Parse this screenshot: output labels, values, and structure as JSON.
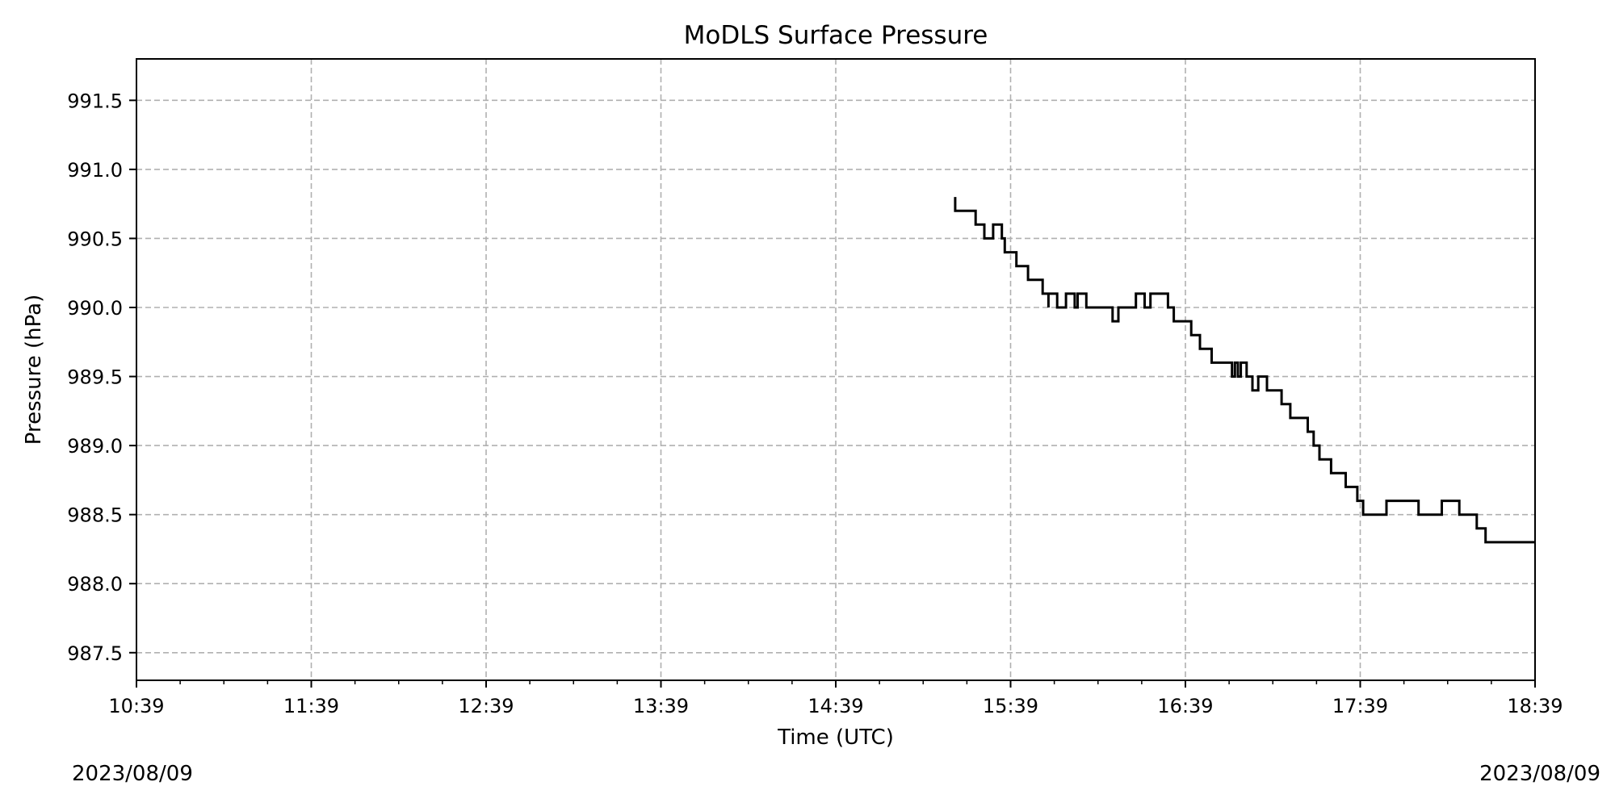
{
  "chart_data": {
    "type": "line",
    "title": "MoDLS Surface Pressure",
    "xlabel": "Time (UTC)",
    "ylabel": "Pressure (hPa)",
    "xlim": [
      "10:39",
      "18:39"
    ],
    "ylim": [
      987.3,
      991.8
    ],
    "x_ticks": [
      "10:39",
      "11:39",
      "12:39",
      "13:39",
      "14:39",
      "15:39",
      "16:39",
      "17:39",
      "18:39"
    ],
    "y_ticks": [
      "987.5",
      "988.0",
      "988.5",
      "989.0",
      "989.5",
      "990.0",
      "990.5",
      "991.0",
      "991.5"
    ],
    "date_left": "2023/08/09",
    "date_right": "2023/08/09",
    "grid": true,
    "line_color": "#000000",
    "series": [
      {
        "style": "step",
        "x": [
          "15:20",
          "15:20",
          "15:27",
          "15:27",
          "15:28",
          "15:30",
          "15:30",
          "15:32",
          "15:33",
          "15:34",
          "15:36",
          "15:37",
          "15:41",
          "15:43",
          "15:45",
          "15:45",
          "15:50",
          "15:51",
          "15:52",
          "15:52",
          "15:55",
          "15:56",
          "15:57",
          "15:58",
          "16:01",
          "16:02",
          "16:05",
          "16:06",
          "16:08",
          "16:10",
          "16:12",
          "16:14",
          "16:16",
          "16:17",
          "16:19",
          "16:22",
          "16:25",
          "16:27",
          "16:28",
          "16:30",
          "16:33",
          "16:35",
          "16:41",
          "16:44",
          "16:48",
          "16:55",
          "16:56",
          "16:57",
          "16:58",
          "17:00",
          "17:02",
          "17:04",
          "17:07",
          "17:12",
          "17:15",
          "17:16",
          "17:18",
          "17:21",
          "17:23",
          "17:25",
          "17:29",
          "17:34",
          "17:38",
          "17:39",
          "17:40",
          "17:44",
          "17:48",
          "17:54",
          "17:59",
          "18:07",
          "18:13",
          "18:15",
          "18:19",
          "18:22",
          "18:26",
          "18:28",
          "18:39"
        ],
        "y": [
          990.8,
          990.7,
          990.7,
          990.6,
          990.6,
          990.6,
          990.5,
          990.5,
          990.6,
          990.6,
          990.5,
          990.4,
          990.3,
          990.3,
          990.2,
          990.2,
          990.1,
          990.1,
          990.0,
          990.1,
          990.0,
          990.0,
          990.0,
          990.1,
          990.0,
          990.1,
          990.0,
          990.0,
          990.0,
          990.0,
          990.0,
          989.9,
          990.0,
          990.0,
          990.0,
          990.1,
          990.0,
          990.1,
          990.1,
          990.1,
          990.0,
          989.9,
          989.8,
          989.7,
          989.6,
          989.5,
          989.6,
          989.5,
          989.6,
          989.5,
          989.4,
          989.5,
          989.4,
          989.3,
          989.2,
          989.2,
          989.2,
          989.1,
          989.0,
          988.9,
          988.8,
          988.7,
          988.6,
          988.6,
          988.5,
          988.5,
          988.6,
          988.6,
          988.5,
          988.6,
          988.5,
          988.5,
          988.4,
          988.3,
          988.3,
          988.3,
          988.3
        ]
      }
    ]
  }
}
